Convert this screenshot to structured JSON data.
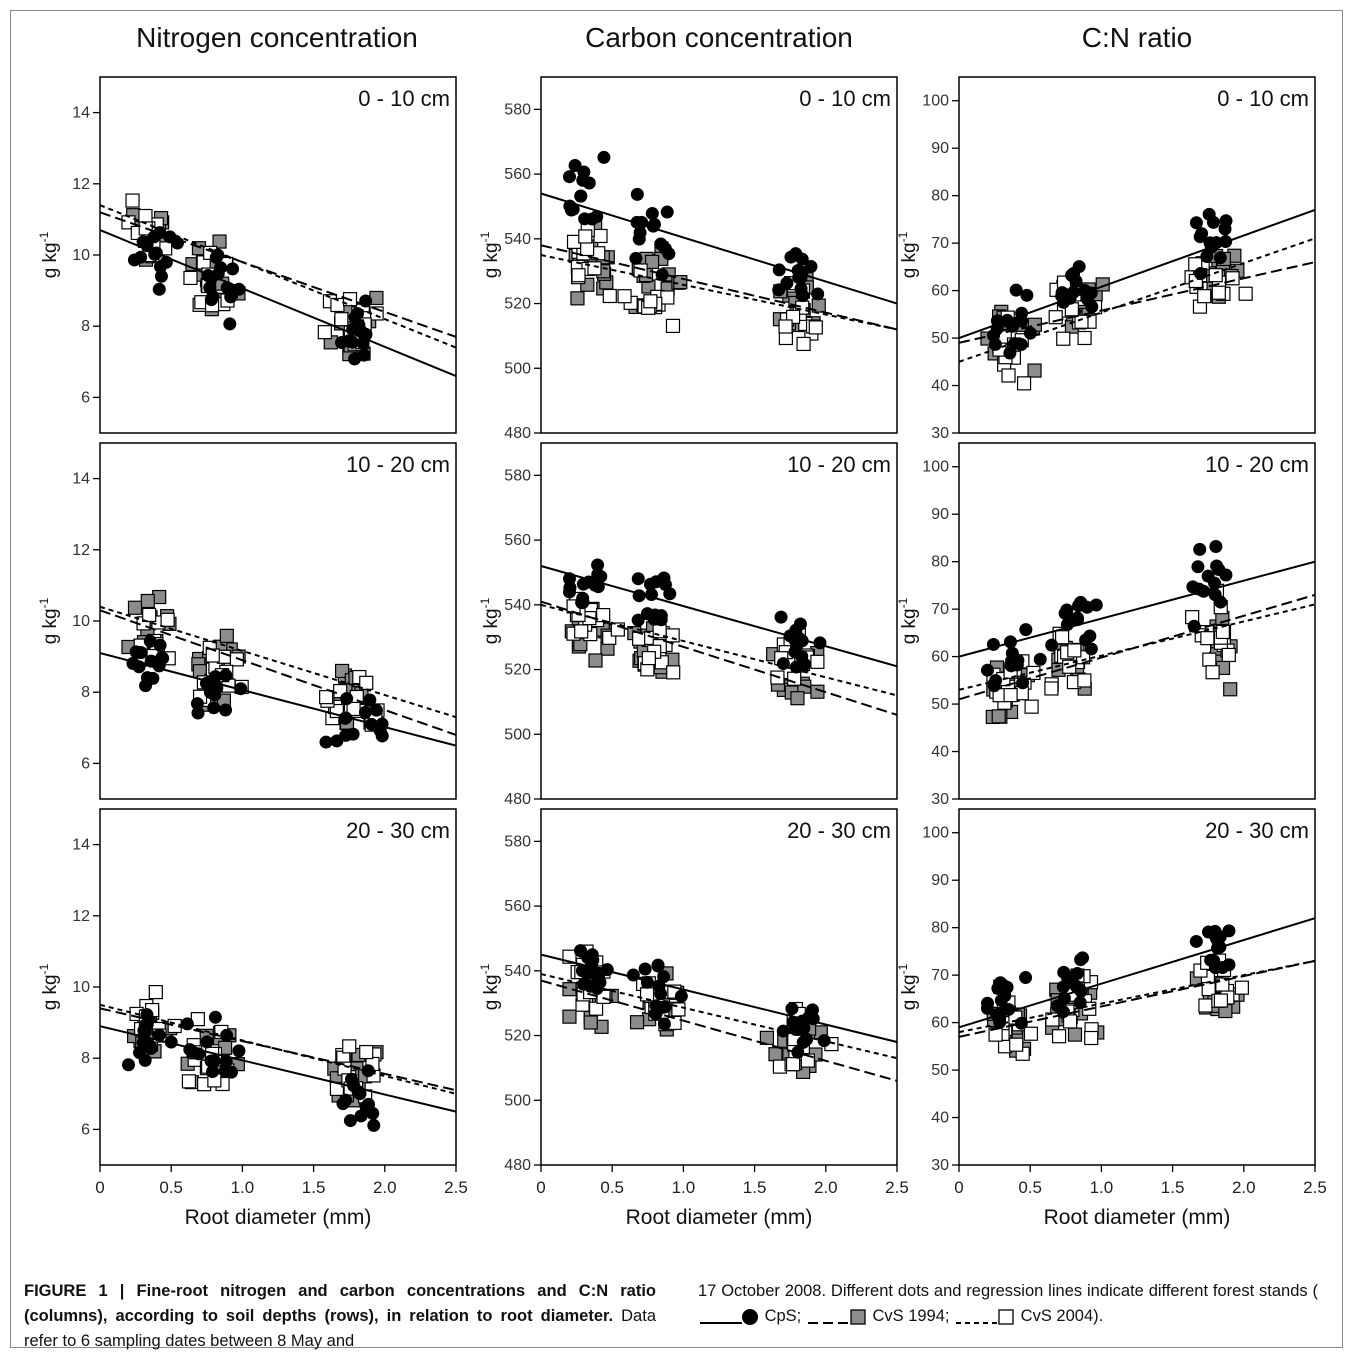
{
  "column_titles": [
    "Nitrogen concentration",
    "Carbon concentration",
    "C:N ratio"
  ],
  "row_labels": [
    "0 - 10 cm",
    "10 - 20 cm",
    "20 - 30 cm"
  ],
  "ylabel": "g kg",
  "ylabel_superscript": "-1",
  "xlabel": "Root diameter (mm)",
  "x_ticks": [
    "0",
    "0.5",
    "1.0",
    "1.5",
    "2.0",
    "2.5"
  ],
  "caption": {
    "label": "FIGURE 1 | Fine-root nitrogen and carbon concentrations and C:N ratio (columns), according to soil depths (rows), in relation to root diameter.",
    "body": "Data refer to 6 sampling dates between 8 May and 17 October 2008. Different dots and regression lines indicate different forest stands (",
    "legend": [
      {
        "name": "CpS",
        "line": "solid",
        "marker": "black-circle"
      },
      {
        "name": "CvS 1994",
        "line": "dashed",
        "marker": "gray-square"
      },
      {
        "name": "CvS 2004",
        "line": "dotted",
        "marker": "white-square"
      }
    ],
    "tail": ")."
  },
  "chart_data": [
    {
      "type": "scatter",
      "column": "Nitrogen concentration",
      "depth": "0 - 10 cm",
      "xlim": [
        0,
        2.5
      ],
      "ylim": [
        5,
        15
      ],
      "y_ticks": [
        6,
        8,
        10,
        12,
        14
      ],
      "clusters": [
        {
          "x": 0.35,
          "y_mean": {
            "CpS": 10.0,
            "CvS 1994": 10.6,
            "CvS 2004": 10.5
          }
        },
        {
          "x": 0.8,
          "y_mean": {
            "CpS": 9.2,
            "CvS 1994": 9.4,
            "CvS 2004": 9.2
          }
        },
        {
          "x": 1.8,
          "y_mean": {
            "CpS": 7.6,
            "CvS 1994": 8.0,
            "CvS 2004": 8.3
          }
        }
      ],
      "regression": [
        {
          "series": "CpS",
          "y0": 10.7,
          "y2_5": 6.6
        },
        {
          "series": "CvS 1994",
          "y0": 11.2,
          "y2_5": 7.7
        },
        {
          "series": "CvS 2004",
          "y0": 11.4,
          "y2_5": 7.4
        }
      ]
    },
    {
      "type": "scatter",
      "column": "Carbon concentration",
      "depth": "0 - 10 cm",
      "xlim": [
        0,
        2.5
      ],
      "ylim": [
        480,
        590
      ],
      "y_ticks": [
        480,
        500,
        520,
        540,
        560,
        580
      ],
      "clusters": [
        {
          "x": 0.35,
          "y_mean": {
            "CpS": 553,
            "CvS 1994": 533,
            "CvS 2004": 533
          }
        },
        {
          "x": 0.8,
          "y_mean": {
            "CpS": 541,
            "CvS 1994": 527,
            "CvS 2004": 521
          }
        },
        {
          "x": 1.8,
          "y_mean": {
            "CpS": 530,
            "CvS 1994": 521,
            "CvS 2004": 515
          }
        }
      ],
      "regression": [
        {
          "series": "CpS",
          "y0": 554,
          "y2_5": 520
        },
        {
          "series": "CvS 1994",
          "y0": 538,
          "y2_5": 512
        },
        {
          "series": "CvS 2004",
          "y0": 535,
          "y2_5": 512
        }
      ]
    },
    {
      "type": "scatter",
      "column": "C:N ratio",
      "depth": "0 - 10 cm",
      "xlim": [
        0,
        2.5
      ],
      "ylim": [
        30,
        105
      ],
      "y_ticks": [
        30,
        40,
        50,
        60,
        70,
        80,
        90,
        100
      ],
      "clusters": [
        {
          "x": 0.35,
          "y_mean": {
            "CpS": 53,
            "CvS 1994": 50,
            "CvS 2004": 47
          }
        },
        {
          "x": 0.8,
          "y_mean": {
            "CpS": 60,
            "CvS 1994": 56,
            "CvS 2004": 55
          }
        },
        {
          "x": 1.8,
          "y_mean": {
            "CpS": 70,
            "CvS 1994": 62,
            "CvS 2004": 61
          }
        }
      ],
      "regression": [
        {
          "series": "CpS",
          "y0": 50,
          "y2_5": 77
        },
        {
          "series": "CvS 1994",
          "y0": 49,
          "y2_5": 66
        },
        {
          "series": "CvS 2004",
          "y0": 45,
          "y2_5": 71
        }
      ]
    },
    {
      "type": "scatter",
      "column": "Nitrogen concentration",
      "depth": "10 - 20 cm",
      "xlim": [
        0,
        2.5
      ],
      "ylim": [
        5,
        15
      ],
      "y_ticks": [
        6,
        8,
        10,
        12,
        14
      ],
      "clusters": [
        {
          "x": 0.35,
          "y_mean": {
            "CpS": 8.8,
            "CvS 1994": 9.8,
            "CvS 2004": 9.6
          }
        },
        {
          "x": 0.8,
          "y_mean": {
            "CpS": 7.9,
            "CvS 1994": 8.7,
            "CvS 2004": 8.6
          }
        },
        {
          "x": 1.8,
          "y_mean": {
            "CpS": 7.2,
            "CvS 1994": 7.9,
            "CvS 2004": 7.8
          }
        }
      ],
      "regression": [
        {
          "series": "CpS",
          "y0": 9.1,
          "y2_5": 6.5
        },
        {
          "series": "CvS 1994",
          "y0": 10.3,
          "y2_5": 6.8
        },
        {
          "series": "CvS 2004",
          "y0": 10.4,
          "y2_5": 7.3
        }
      ]
    },
    {
      "type": "scatter",
      "column": "Carbon concentration",
      "depth": "10 - 20 cm",
      "xlim": [
        0,
        2.5
      ],
      "ylim": [
        480,
        590
      ],
      "y_ticks": [
        480,
        500,
        520,
        540,
        560,
        580
      ],
      "clusters": [
        {
          "x": 0.35,
          "y_mean": {
            "CpS": 547,
            "CvS 1994": 532,
            "CvS 2004": 533
          }
        },
        {
          "x": 0.8,
          "y_mean": {
            "CpS": 541,
            "CvS 1994": 527,
            "CvS 2004": 525
          }
        },
        {
          "x": 1.8,
          "y_mean": {
            "CpS": 528,
            "CvS 1994": 517,
            "CvS 2004": 521
          }
        }
      ],
      "regression": [
        {
          "series": "CpS",
          "y0": 552,
          "y2_5": 521
        },
        {
          "series": "CvS 1994",
          "y0": 541,
          "y2_5": 506
        },
        {
          "series": "CvS 2004",
          "y0": 540,
          "y2_5": 512
        }
      ]
    },
    {
      "type": "scatter",
      "column": "C:N ratio",
      "depth": "10 - 20 cm",
      "xlim": [
        0,
        2.5
      ],
      "ylim": [
        30,
        105
      ],
      "y_ticks": [
        30,
        40,
        50,
        60,
        70,
        80,
        90,
        100
      ],
      "clusters": [
        {
          "x": 0.35,
          "y_mean": {
            "CpS": 60,
            "CvS 1994": 52,
            "CvS 2004": 54
          }
        },
        {
          "x": 0.8,
          "y_mean": {
            "CpS": 69,
            "CvS 1994": 59,
            "CvS 2004": 60
          }
        },
        {
          "x": 1.8,
          "y_mean": {
            "CpS": 75,
            "CvS 1994": 62,
            "CvS 2004": 64
          }
        }
      ],
      "regression": [
        {
          "series": "CpS",
          "y0": 60,
          "y2_5": 80
        },
        {
          "series": "CvS 1994",
          "y0": 51,
          "y2_5": 73
        },
        {
          "series": "CvS 2004",
          "y0": 53,
          "y2_5": 71
        }
      ]
    },
    {
      "type": "scatter",
      "column": "Nitrogen concentration",
      "depth": "20 - 30 cm",
      "xlim": [
        0,
        2.5
      ],
      "ylim": [
        5,
        15
      ],
      "y_ticks": [
        6,
        8,
        10,
        12,
        14
      ],
      "clusters": [
        {
          "x": 0.35,
          "y_mean": {
            "CpS": 8.5,
            "CvS 1994": 8.7,
            "CvS 2004": 9.1
          }
        },
        {
          "x": 0.8,
          "y_mean": {
            "CpS": 8.2,
            "CvS 1994": 7.9,
            "CvS 2004": 8.2
          }
        },
        {
          "x": 1.8,
          "y_mean": {
            "CpS": 7.0,
            "CvS 1994": 7.6,
            "CvS 2004": 7.7
          }
        }
      ],
      "regression": [
        {
          "series": "CpS",
          "y0": 8.9,
          "y2_5": 6.5
        },
        {
          "series": "CvS 1994",
          "y0": 9.4,
          "y2_5": 7.1
        },
        {
          "series": "CvS 2004",
          "y0": 9.5,
          "y2_5": 7.0
        }
      ]
    },
    {
      "type": "scatter",
      "column": "Carbon concentration",
      "depth": "20 - 30 cm",
      "xlim": [
        0,
        2.5
      ],
      "ylim": [
        480,
        590
      ],
      "y_ticks": [
        480,
        500,
        520,
        540,
        560,
        580
      ],
      "clusters": [
        {
          "x": 0.35,
          "y_mean": {
            "CpS": 540,
            "CvS 1994": 532,
            "CvS 2004": 536
          }
        },
        {
          "x": 0.8,
          "y_mean": {
            "CpS": 532,
            "CvS 1994": 527,
            "CvS 2004": 530
          }
        },
        {
          "x": 1.8,
          "y_mean": {
            "CpS": 523,
            "CvS 1994": 517,
            "CvS 2004": 519
          }
        }
      ],
      "regression": [
        {
          "series": "CpS",
          "y0": 545,
          "y2_5": 518
        },
        {
          "series": "CvS 1994",
          "y0": 537,
          "y2_5": 506
        },
        {
          "series": "CvS 2004",
          "y0": 539,
          "y2_5": 513
        }
      ]
    },
    {
      "type": "scatter",
      "column": "C:N ratio",
      "depth": "20 - 30 cm",
      "xlim": [
        0,
        2.5
      ],
      "ylim": [
        30,
        105
      ],
      "y_ticks": [
        30,
        40,
        50,
        60,
        70,
        80,
        90,
        100
      ],
      "clusters": [
        {
          "x": 0.35,
          "y_mean": {
            "CpS": 64,
            "CvS 1994": 59,
            "CvS 2004": 58
          }
        },
        {
          "x": 0.8,
          "y_mean": {
            "CpS": 68,
            "CvS 1994": 64,
            "CvS 2004": 64
          }
        },
        {
          "x": 1.8,
          "y_mean": {
            "CpS": 76,
            "CvS 1994": 66,
            "CvS 2004": 68
          }
        }
      ],
      "regression": [
        {
          "series": "CpS",
          "y0": 59,
          "y2_5": 82
        },
        {
          "series": "CvS 1994",
          "y0": 57,
          "y2_5": 73
        },
        {
          "series": "CvS 2004",
          "y0": 58,
          "y2_5": 73
        }
      ]
    }
  ]
}
